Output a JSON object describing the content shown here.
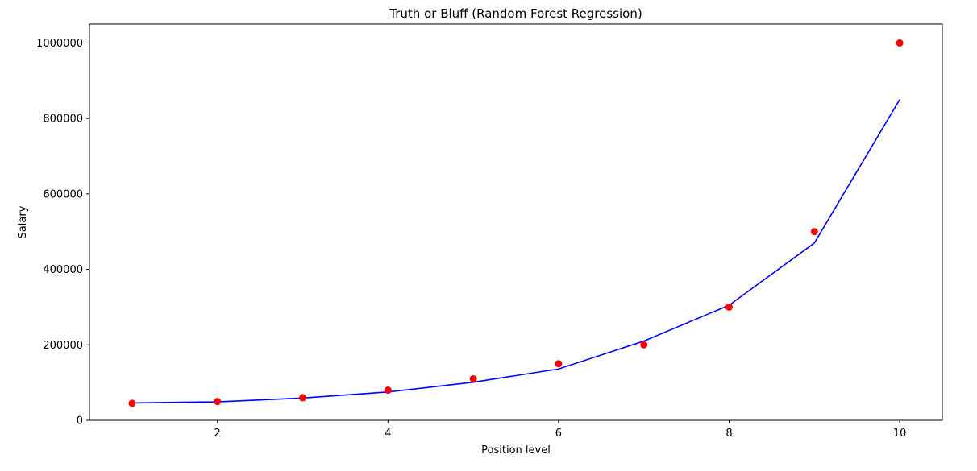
{
  "chart_data": {
    "type": "scatter",
    "title": "Truth or Bluff (Random Forest Regression)",
    "xlabel": "Position level",
    "ylabel": "Salary",
    "xlim": [
      0.5,
      10.5
    ],
    "ylim": [
      0,
      1050000
    ],
    "xticks": [
      2,
      4,
      6,
      8,
      10
    ],
    "yticks": [
      0,
      200000,
      400000,
      600000,
      800000,
      1000000
    ],
    "grid": false,
    "series": [
      {
        "kind": "scatter",
        "color": "#ff0000",
        "x": [
          1,
          2,
          3,
          4,
          5,
          6,
          7,
          8,
          9,
          10
        ],
        "y": [
          45000,
          50000,
          60000,
          80000,
          110000,
          150000,
          200000,
          300000,
          500000,
          1000000
        ]
      },
      {
        "kind": "line",
        "color": "#0000ff",
        "x": [
          1,
          2,
          3,
          4,
          5,
          6,
          7,
          8,
          9,
          10
        ],
        "y": [
          46000,
          49000,
          59000,
          75000,
          101000,
          136000,
          210000,
          305000,
          470000,
          850000
        ]
      }
    ]
  }
}
